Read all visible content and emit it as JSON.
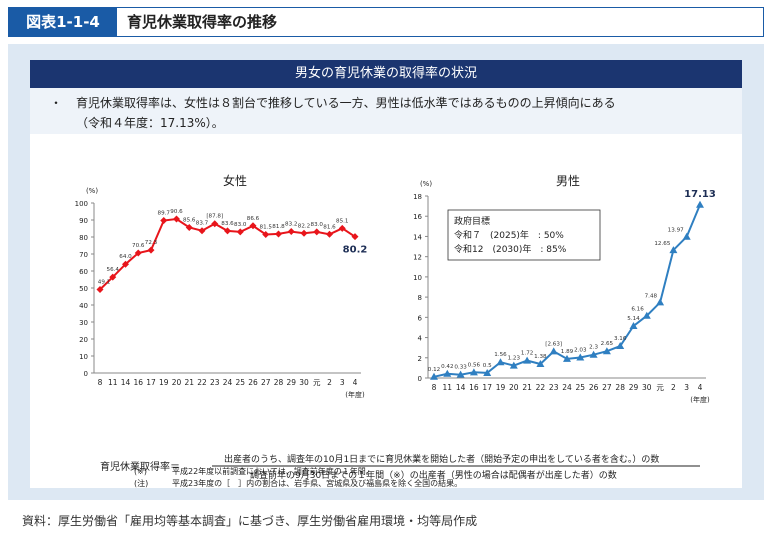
{
  "header": {
    "badge": "図表1-1-4",
    "title": "育児休業取得率の推移"
  },
  "panel": {
    "title": "男女の育児休業の取得率の状況",
    "bullet": "・",
    "summary_line1": "育児休業取得率は、女性は８割台で推移している一方、男性は低水準ではあるものの上昇傾向にある",
    "summary_line2": "（令和４年度：17.13%）。"
  },
  "chart_data": [
    {
      "type": "line",
      "title": "女性",
      "ylabel": "(%)",
      "xlabel": "(年度)",
      "ylim": [
        0,
        100
      ],
      "yticks": [
        0,
        10,
        20,
        30,
        40,
        50,
        60,
        70,
        80,
        90,
        100
      ],
      "categories": [
        "8",
        "11",
        "14",
        "16",
        "17",
        "19",
        "20",
        "21",
        "22",
        "23",
        "24",
        "25",
        "26",
        "27",
        "28",
        "29",
        "30",
        "元",
        "2",
        "3",
        "4"
      ],
      "x_tick_labels": [
        "8",
        "11",
        "14",
        "16",
        "17",
        "19",
        "20",
        "21",
        "22",
        "23",
        "24",
        "25",
        "26",
        "27",
        "28",
        "29",
        "30",
        "元",
        "2",
        "3",
        "4"
      ],
      "values": [
        49.1,
        56.4,
        64.0,
        70.6,
        72.3,
        89.7,
        90.6,
        85.6,
        83.7,
        87.8,
        83.6,
        83.0,
        86.6,
        81.5,
        81.8,
        83.2,
        82.2,
        83.0,
        81.6,
        85.1,
        80.2
      ],
      "labels": [
        "49.1",
        "56.4",
        "64.0",
        "70.6",
        "72.3",
        "89.7",
        "90.6",
        "85.6",
        "83.7",
        "[87.8]",
        "83.6",
        "83.0",
        "86.6",
        "81.5",
        "81.8",
        "83.2",
        "82.2",
        "83.0",
        "81.6",
        "85.1",
        "80.2"
      ],
      "color": "#e8151b"
    },
    {
      "type": "line",
      "title": "男性",
      "ylabel": "(%)",
      "xlabel": "(年度)",
      "ylim": [
        0,
        18
      ],
      "yticks": [
        0,
        2,
        4,
        6,
        8,
        10,
        12,
        14,
        16,
        18
      ],
      "categories": [
        "8",
        "11",
        "14",
        "16",
        "17",
        "19",
        "20",
        "21",
        "22",
        "23",
        "24",
        "25",
        "26",
        "27",
        "28",
        "29",
        "30",
        "元",
        "2",
        "3",
        "4"
      ],
      "x_tick_labels": [
        "8",
        "11",
        "14",
        "16",
        "17",
        "19",
        "20",
        "21",
        "22",
        "23",
        "24",
        "25",
        "26",
        "27",
        "28",
        "29",
        "30",
        "元",
        "2",
        "3",
        "4"
      ],
      "values": [
        0.12,
        0.42,
        0.33,
        0.56,
        0.5,
        1.56,
        1.23,
        1.72,
        1.38,
        2.63,
        1.89,
        2.03,
        2.3,
        2.65,
        3.16,
        5.14,
        6.16,
        7.48,
        12.65,
        13.97,
        17.13
      ],
      "labels": [
        "0.12",
        "0.42",
        "0.33",
        "0.56",
        "0.5",
        "1.56",
        "1.23",
        "1.72",
        "1.38",
        "[2.63]",
        "1.89",
        "2.03",
        "2.3",
        "2.65",
        "3.16",
        "5.14",
        "6.16",
        "7.48",
        "12.65",
        "13.97",
        "17.13"
      ],
      "color": "#2f7fc1",
      "annotation": {
        "line1": "政府目標",
        "line2": "令和７　(2025)年　: 50%",
        "line3": "令和12　(2030)年　: 85%"
      }
    }
  ],
  "formula": {
    "lhs": "育児休業取得率＝",
    "numerator": "出産者のうち、調査年の10月1日までに育児休業を開始した者（開始予定の申出をしている者を含む。）の数",
    "denominator": "調査前年の9月30日までの１年間（※）の出産者（男性の場合は配偶者が出産した者）の数"
  },
  "notes": [
    {
      "mark": "(※)",
      "text": "平成22年度以前調査においては、調査前年度の１年間。"
    },
    {
      "mark": "(注)",
      "text": "平成23年度の［　］内の割合は、岩手県、宮城県及び福島県を除く全国の結果。"
    }
  ],
  "source": "資料：厚生労働省「雇用均等基本調査」に基づき、厚生労働省雇用環境・均等局作成"
}
